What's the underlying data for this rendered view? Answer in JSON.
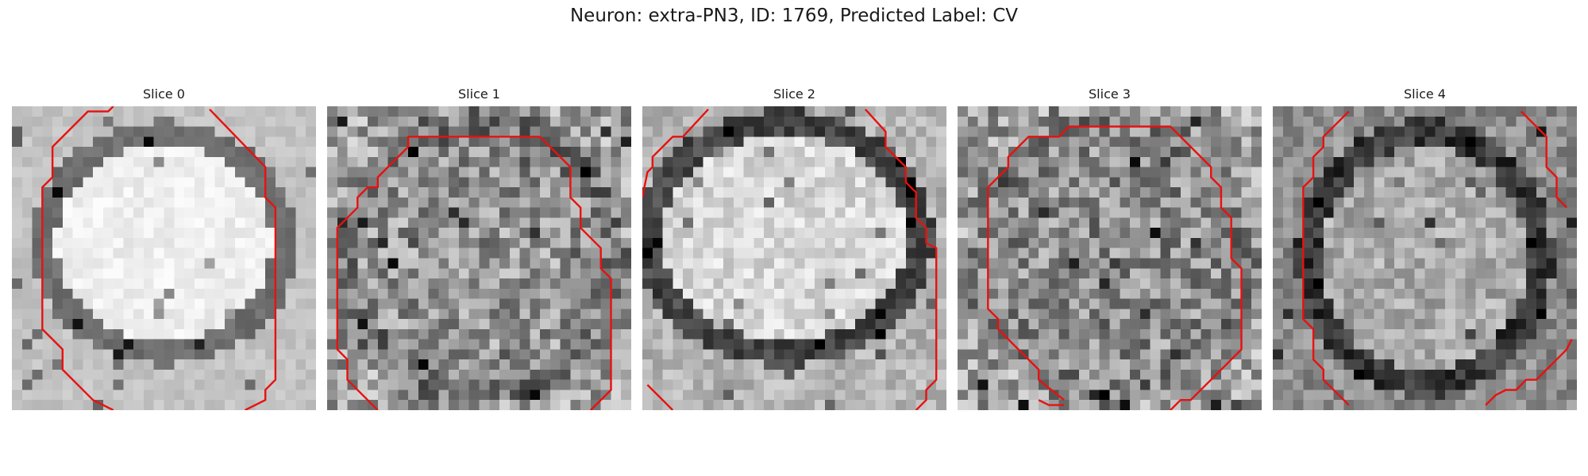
{
  "figure": {
    "title": "Neuron: extra-PN3, ID: 1769, Predicted Label: CV",
    "contour_color": "#e8110f"
  },
  "slices": [
    {
      "label": "Slice 0"
    },
    {
      "label": "Slice 1"
    },
    {
      "label": "Slice 2"
    },
    {
      "label": "Slice 3"
    },
    {
      "label": "Slice 4"
    }
  ]
}
